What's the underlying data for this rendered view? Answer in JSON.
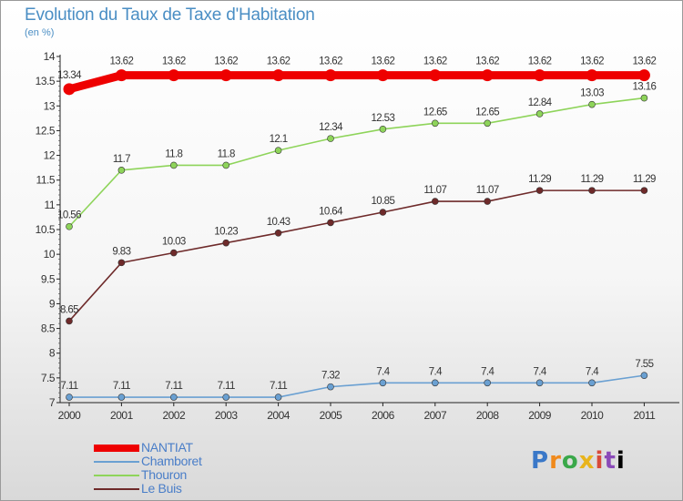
{
  "header": {
    "title": "Evolution du Taux de Taxe d'Habitation",
    "subtitle": "(en %)"
  },
  "logo": {
    "letters": [
      "P",
      "r",
      "o",
      "x",
      "i",
      "t",
      "i"
    ],
    "text": "Proxiti"
  },
  "chart_data": {
    "type": "line",
    "x": [
      "2000",
      "2001",
      "2002",
      "2003",
      "2004",
      "2005",
      "2006",
      "2007",
      "2008",
      "2009",
      "2010",
      "2011"
    ],
    "ylim": [
      7,
      14
    ],
    "yticks": [
      "7",
      "7.5",
      "8",
      "8.5",
      "9",
      "9.5",
      "10",
      "10.5",
      "11",
      "11.5",
      "12",
      "12.5",
      "13",
      "13.5",
      "14"
    ],
    "grid": false,
    "legend_position": "bottom-left",
    "series": [
      {
        "name": "NANTIAT",
        "color": "#ee0000",
        "values": [
          13.34,
          13.62,
          13.62,
          13.62,
          13.62,
          13.62,
          13.62,
          13.62,
          13.62,
          13.62,
          13.62,
          13.62
        ],
        "labels": [
          "13.34",
          "13.62",
          "13.62",
          "13.62",
          "13.62",
          "13.62",
          "13.62",
          "13.62",
          "13.62",
          "13.62",
          "13.62",
          "13.62"
        ]
      },
      {
        "name": "Chamboret",
        "color": "#6aa0d2",
        "values": [
          7.11,
          7.11,
          7.11,
          7.11,
          7.11,
          7.32,
          7.4,
          7.4,
          7.4,
          7.4,
          7.4,
          7.55
        ],
        "labels": [
          "7.11",
          "7.11",
          "7.11",
          "7.11",
          "7.11",
          "7.32",
          "7.4",
          "7.4",
          "7.4",
          "7.4",
          "7.4",
          "7.55"
        ]
      },
      {
        "name": "Thouron",
        "color": "#8ed45a",
        "values": [
          10.56,
          11.7,
          11.8,
          11.8,
          12.1,
          12.34,
          12.53,
          12.65,
          12.65,
          12.84,
          13.03,
          13.16
        ],
        "labels": [
          "10.56",
          "11.7",
          "11.8",
          "11.8",
          "12.1",
          "12.34",
          "12.53",
          "12.65",
          "12.65",
          "12.84",
          "13.03",
          "13.16"
        ]
      },
      {
        "name": "Le Buis",
        "color": "#6e2a2a",
        "values": [
          8.65,
          9.83,
          10.03,
          10.23,
          10.43,
          10.64,
          10.85,
          11.07,
          11.07,
          11.29,
          11.29,
          11.29
        ],
        "labels": [
          "8.65",
          "9.83",
          "10.03",
          "10.23",
          "10.43",
          "10.64",
          "10.85",
          "11.07",
          "11.07",
          "11.29",
          "11.29",
          "11.29"
        ]
      }
    ]
  }
}
